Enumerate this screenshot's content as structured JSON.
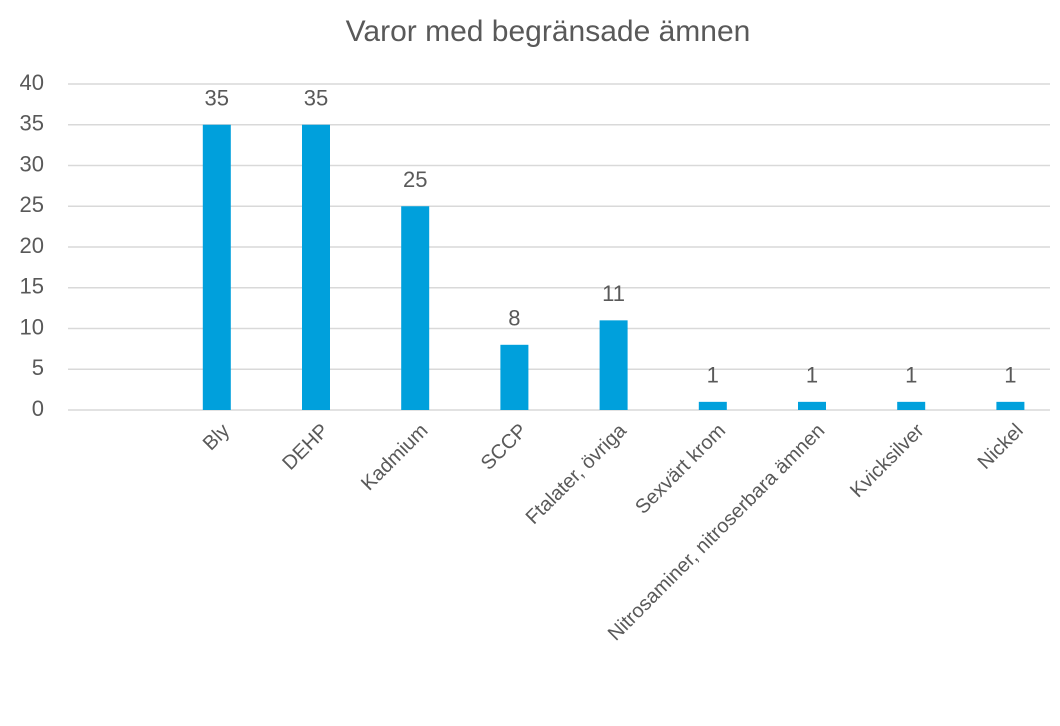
{
  "chart_data": {
    "type": "bar",
    "title": "Varor med begränsade ämnen",
    "categories": [
      null,
      "Bly",
      "DEHP",
      "Kadmium",
      "SCCP",
      "Ftalater, övriga",
      "Sexvärt krom",
      "Nitrosaminer, nitroserbara ämnen",
      "Kvicksilver",
      "Nickel"
    ],
    "values": [
      null,
      35,
      35,
      25,
      8,
      11,
      1,
      1,
      1,
      1
    ],
    "color": "#00a0dc",
    "ylim": [
      0,
      40
    ],
    "yticks": [
      0,
      5,
      10,
      15,
      20,
      25,
      30,
      35,
      40
    ],
    "grid": true
  }
}
